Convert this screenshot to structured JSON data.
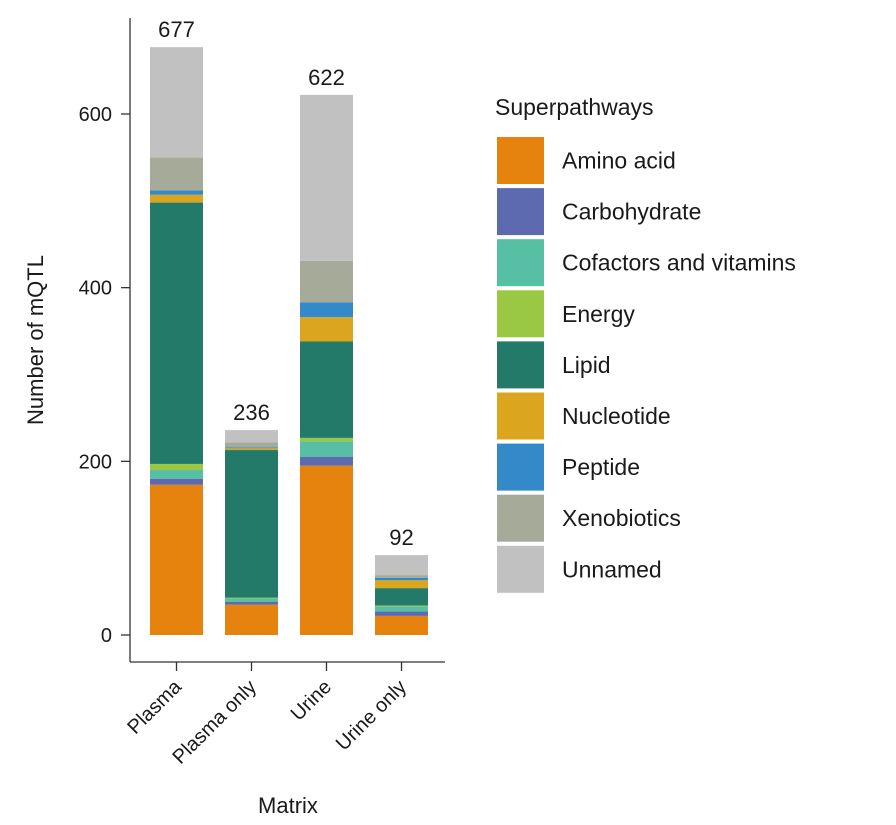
{
  "chart_data": {
    "type": "bar",
    "stacked": true,
    "xlabel": "Matrix",
    "ylabel": "Number of mQTL",
    "categories": [
      "Plasma",
      "Plasma only",
      "Urine",
      "Urine only"
    ],
    "totals": [
      677,
      236,
      622,
      92
    ],
    "ylim": [
      0,
      700
    ],
    "yticks": [
      0,
      200,
      400,
      600
    ],
    "grid": false,
    "legend": {
      "title": "Superpathways",
      "position": "right"
    },
    "series": [
      {
        "name": "Amino acid",
        "color": "#E6820E",
        "values": [
          173,
          35,
          195,
          22
        ]
      },
      {
        "name": "Carbohydrate",
        "color": "#5E6AB0",
        "values": [
          7,
          3,
          10,
          5
        ]
      },
      {
        "name": "Cofactors and vitamins",
        "color": "#57BFA3",
        "values": [
          10,
          4,
          18,
          6
        ]
      },
      {
        "name": "Energy",
        "color": "#9BC843",
        "values": [
          7,
          1,
          4,
          1
        ]
      },
      {
        "name": "Lipid",
        "color": "#237A68",
        "values": [
          301,
          170,
          111,
          20
        ]
      },
      {
        "name": "Nucleotide",
        "color": "#DBA51E",
        "values": [
          9,
          2,
          28,
          9
        ]
      },
      {
        "name": "Peptide",
        "color": "#3489C8",
        "values": [
          5,
          1,
          17,
          3
        ]
      },
      {
        "name": "Xenobiotics",
        "color": "#A5AB98",
        "values": [
          38,
          6,
          48,
          3
        ]
      },
      {
        "name": "Unnamed",
        "color": "#C1C1C1",
        "values": [
          127,
          14,
          191,
          23
        ]
      }
    ]
  }
}
